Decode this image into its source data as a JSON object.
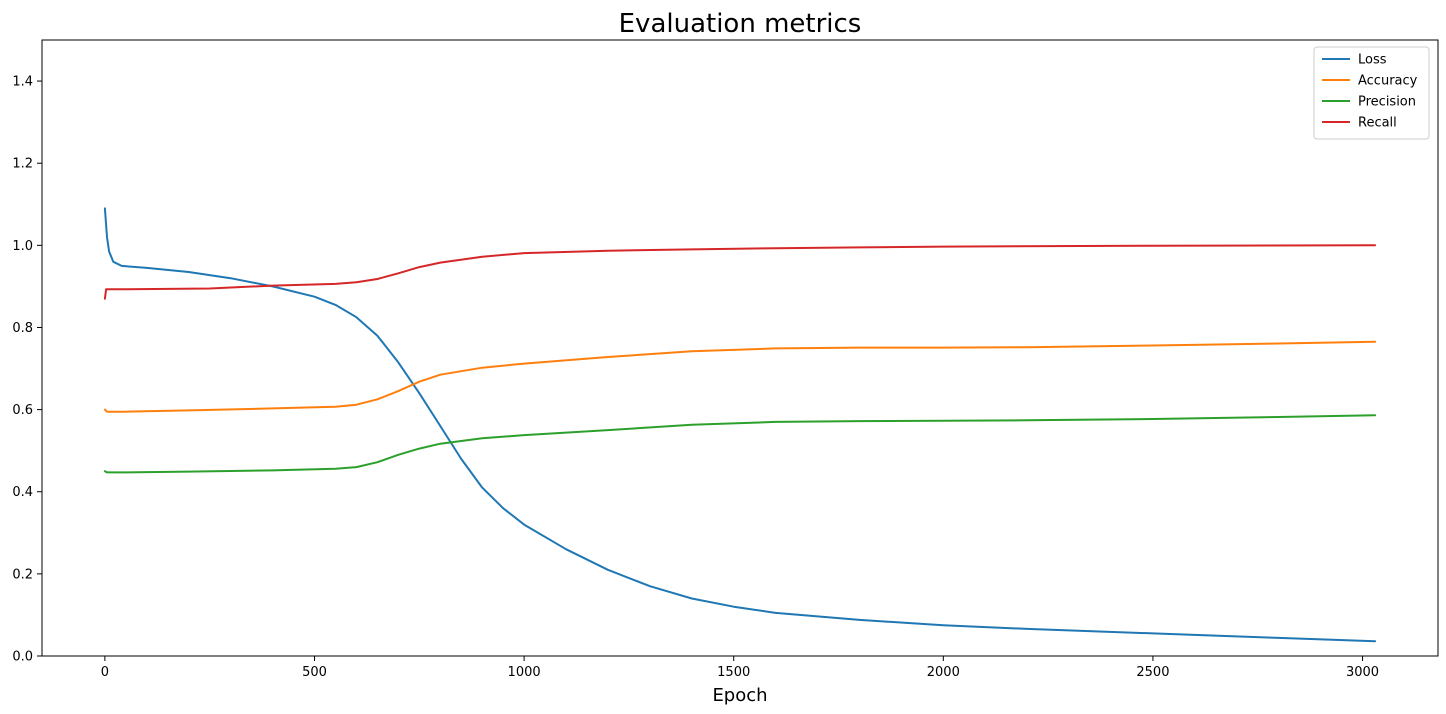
{
  "chart_data": {
    "type": "line",
    "title": "Evaluation metrics",
    "xlabel": "Epoch",
    "ylabel": "",
    "xlim": [
      -150,
      3180
    ],
    "ylim": [
      0.0,
      1.5
    ],
    "x_ticks": [
      0,
      500,
      1000,
      1500,
      2000,
      2500,
      3000
    ],
    "x_tick_labels": [
      "0",
      "500",
      "1000",
      "1500",
      "2000",
      "2500",
      "3000"
    ],
    "y_ticks": [
      0.0,
      0.2,
      0.4,
      0.6,
      0.8,
      1.0,
      1.2,
      1.4
    ],
    "y_tick_labels": [
      "0.0",
      "0.2",
      "0.4",
      "0.6",
      "0.8",
      "1.0",
      "1.2",
      "1.4"
    ],
    "grid": false,
    "legend_position": "top-right",
    "series": [
      {
        "name": "Loss",
        "color": "#1f77b4",
        "points": [
          [
            0,
            1.09
          ],
          [
            5,
            1.02
          ],
          [
            10,
            0.985
          ],
          [
            20,
            0.96
          ],
          [
            40,
            0.95
          ],
          [
            100,
            0.945
          ],
          [
            200,
            0.935
          ],
          [
            300,
            0.92
          ],
          [
            400,
            0.9
          ],
          [
            500,
            0.875
          ],
          [
            550,
            0.855
          ],
          [
            600,
            0.825
          ],
          [
            650,
            0.78
          ],
          [
            700,
            0.715
          ],
          [
            750,
            0.64
          ],
          [
            800,
            0.56
          ],
          [
            850,
            0.48
          ],
          [
            900,
            0.41
          ],
          [
            950,
            0.36
          ],
          [
            1000,
            0.32
          ],
          [
            1100,
            0.26
          ],
          [
            1200,
            0.21
          ],
          [
            1300,
            0.17
          ],
          [
            1400,
            0.14
          ],
          [
            1500,
            0.12
          ],
          [
            1600,
            0.105
          ],
          [
            1800,
            0.088
          ],
          [
            2000,
            0.075
          ],
          [
            2200,
            0.066
          ],
          [
            2500,
            0.055
          ],
          [
            2800,
            0.044
          ],
          [
            3030,
            0.036
          ]
        ]
      },
      {
        "name": "Accuracy",
        "color": "#ff7f0e",
        "points": [
          [
            0,
            0.6
          ],
          [
            5,
            0.595
          ],
          [
            50,
            0.595
          ],
          [
            200,
            0.598
          ],
          [
            400,
            0.603
          ],
          [
            550,
            0.607
          ],
          [
            600,
            0.612
          ],
          [
            650,
            0.625
          ],
          [
            700,
            0.645
          ],
          [
            750,
            0.668
          ],
          [
            800,
            0.685
          ],
          [
            900,
            0.702
          ],
          [
            1000,
            0.712
          ],
          [
            1200,
            0.728
          ],
          [
            1400,
            0.742
          ],
          [
            1600,
            0.749
          ],
          [
            1800,
            0.751
          ],
          [
            2000,
            0.751
          ],
          [
            2200,
            0.752
          ],
          [
            2500,
            0.756
          ],
          [
            2800,
            0.761
          ],
          [
            3030,
            0.765
          ]
        ]
      },
      {
        "name": "Precision",
        "color": "#2ca02c",
        "points": [
          [
            0,
            0.45
          ],
          [
            5,
            0.447
          ],
          [
            50,
            0.447
          ],
          [
            200,
            0.449
          ],
          [
            400,
            0.452
          ],
          [
            550,
            0.456
          ],
          [
            600,
            0.46
          ],
          [
            650,
            0.472
          ],
          [
            700,
            0.49
          ],
          [
            750,
            0.505
          ],
          [
            800,
            0.517
          ],
          [
            900,
            0.53
          ],
          [
            1000,
            0.538
          ],
          [
            1200,
            0.55
          ],
          [
            1400,
            0.563
          ],
          [
            1600,
            0.57
          ],
          [
            1800,
            0.572
          ],
          [
            2000,
            0.573
          ],
          [
            2200,
            0.574
          ],
          [
            2500,
            0.577
          ],
          [
            2800,
            0.582
          ],
          [
            3030,
            0.586
          ]
        ]
      },
      {
        "name": "Recall",
        "color": "#d62728",
        "points": [
          [
            0,
            0.87
          ],
          [
            3,
            0.893
          ],
          [
            50,
            0.893
          ],
          [
            250,
            0.895
          ],
          [
            400,
            0.902
          ],
          [
            550,
            0.906
          ],
          [
            600,
            0.91
          ],
          [
            650,
            0.918
          ],
          [
            700,
            0.932
          ],
          [
            750,
            0.947
          ],
          [
            800,
            0.958
          ],
          [
            900,
            0.972
          ],
          [
            1000,
            0.981
          ],
          [
            1200,
            0.987
          ],
          [
            1400,
            0.99
          ],
          [
            1600,
            0.993
          ],
          [
            1800,
            0.995
          ],
          [
            2000,
            0.997
          ],
          [
            2500,
            0.999
          ],
          [
            3030,
            1.0
          ]
        ]
      }
    ]
  }
}
